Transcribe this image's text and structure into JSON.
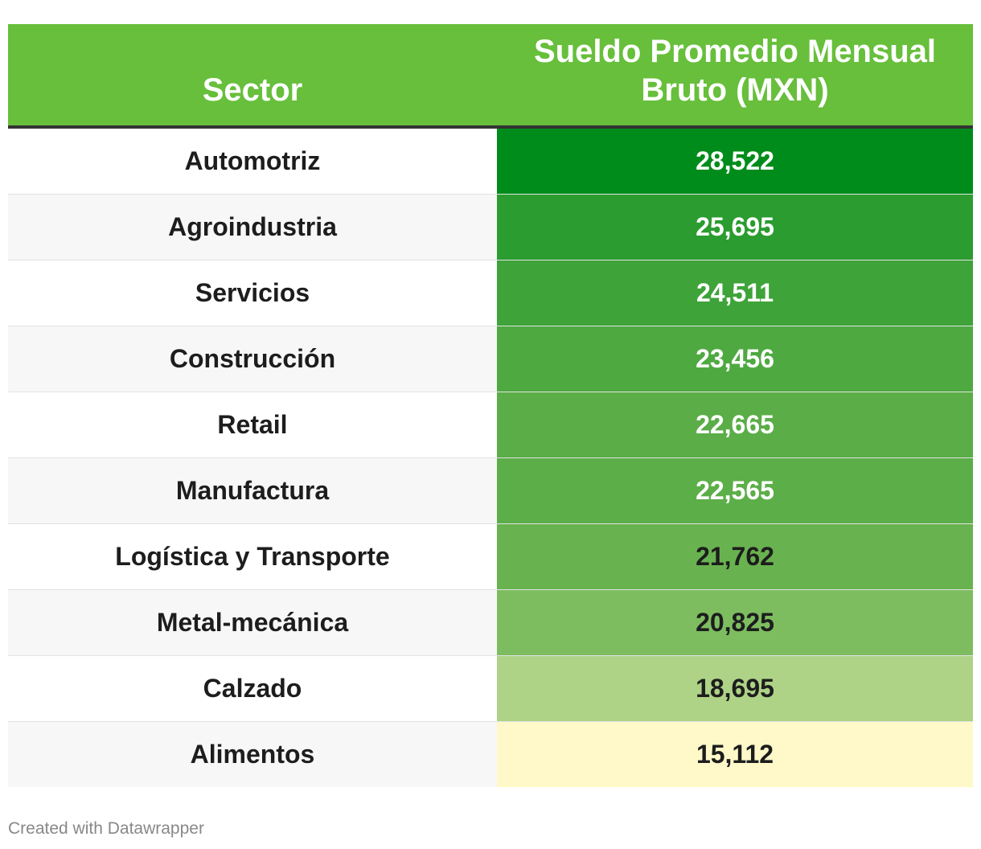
{
  "table": {
    "headers": {
      "sector": "Sector",
      "salary": "Sueldo Promedio Mensual Bruto (MXN)"
    },
    "rows": [
      {
        "sector": "Automotriz",
        "salary": "28,522",
        "value": 28522
      },
      {
        "sector": "Agroindustria",
        "salary": "25,695",
        "value": 25695
      },
      {
        "sector": "Servicios",
        "salary": "24,511",
        "value": 24511
      },
      {
        "sector": "Construcción",
        "salary": "23,456",
        "value": 23456
      },
      {
        "sector": "Retail",
        "salary": "22,665",
        "value": 22665
      },
      {
        "sector": "Manufactura",
        "salary": "22,565",
        "value": 22565
      },
      {
        "sector": "Logística y Transporte",
        "salary": "21,762",
        "value": 21762
      },
      {
        "sector": "Metal-mecánica",
        "salary": "20,825",
        "value": 20825
      },
      {
        "sector": "Calzado",
        "salary": "18,695",
        "value": 18695
      },
      {
        "sector": "Alimentos",
        "salary": "15,112",
        "value": 15112
      }
    ]
  },
  "colors": {
    "header_bg": "#67bf3b",
    "scale_high": "#008c1a",
    "scale_low": "#fff9c9",
    "text_dark": "#1d1d1d",
    "text_light": "#ffffff"
  },
  "chart_data": {
    "type": "table",
    "title": "",
    "columns": [
      "Sector",
      "Sueldo Promedio Mensual Bruto (MXN)"
    ],
    "categories": [
      "Automotriz",
      "Agroindustria",
      "Servicios",
      "Construcción",
      "Retail",
      "Manufactura",
      "Logística y Transporte",
      "Metal-mecánica",
      "Calzado",
      "Alimentos"
    ],
    "values": [
      28522,
      25695,
      24511,
      23456,
      22665,
      22565,
      21762,
      20825,
      18695,
      15112
    ],
    "unit": "MXN"
  },
  "footer": {
    "credit": "Created with Datawrapper"
  }
}
